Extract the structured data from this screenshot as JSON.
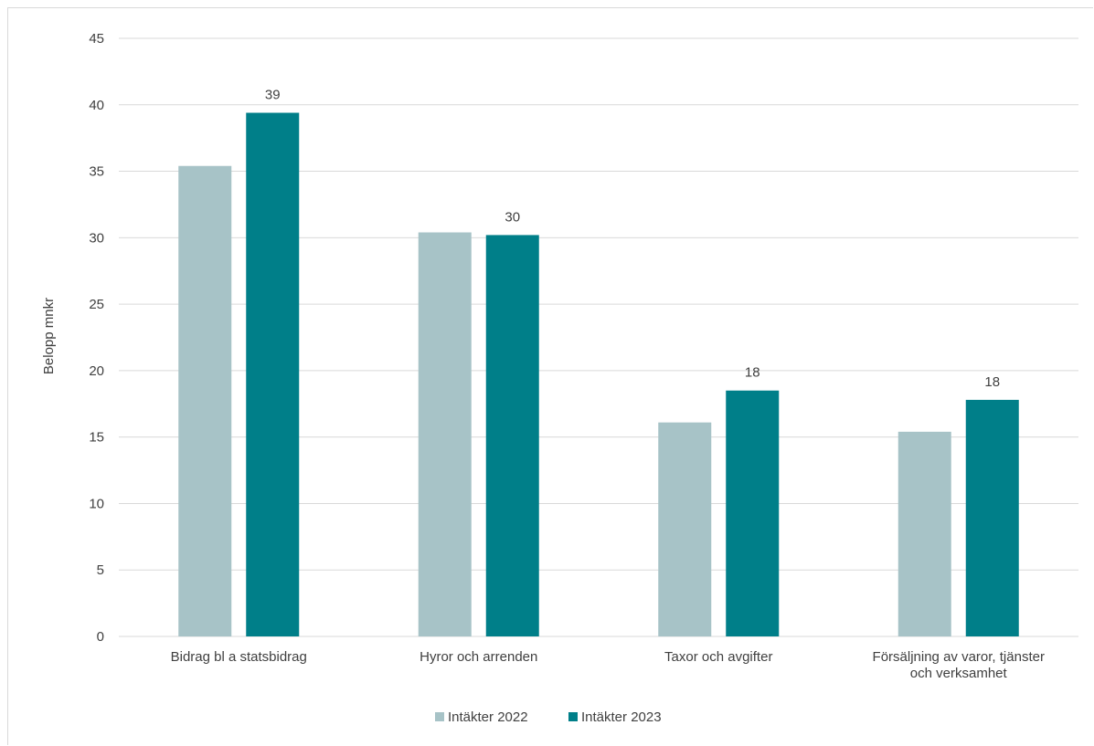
{
  "colors": {
    "series_2022": "#a7c3c7",
    "series_2023": "#007f89",
    "grid": "#d9d9d9",
    "text": "#404040"
  },
  "chart_data": {
    "type": "bar",
    "title": "",
    "xlabel": "",
    "ylabel": "Belopp mnkr",
    "ylim": [
      0,
      45
    ],
    "yticks": [
      0,
      5,
      10,
      15,
      20,
      25,
      30,
      35,
      40,
      45
    ],
    "grid": true,
    "legend_position": "bottom",
    "categories": [
      [
        "Bidrag bl a statsbidrag"
      ],
      [
        "Hyror och arrenden"
      ],
      [
        "Taxor och avgifter"
      ],
      [
        "Försäljning av varor, tjänster",
        "och verksamhet"
      ]
    ],
    "series": [
      {
        "name": "Intäkter 2022",
        "values": [
          35.4,
          30.4,
          16.1,
          15.4
        ],
        "data_labels": [
          "",
          "",
          "",
          ""
        ]
      },
      {
        "name": "Intäkter 2023",
        "values": [
          39.4,
          30.2,
          18.5,
          17.8
        ],
        "data_labels": [
          "39",
          "30",
          "18",
          "18"
        ]
      }
    ]
  }
}
